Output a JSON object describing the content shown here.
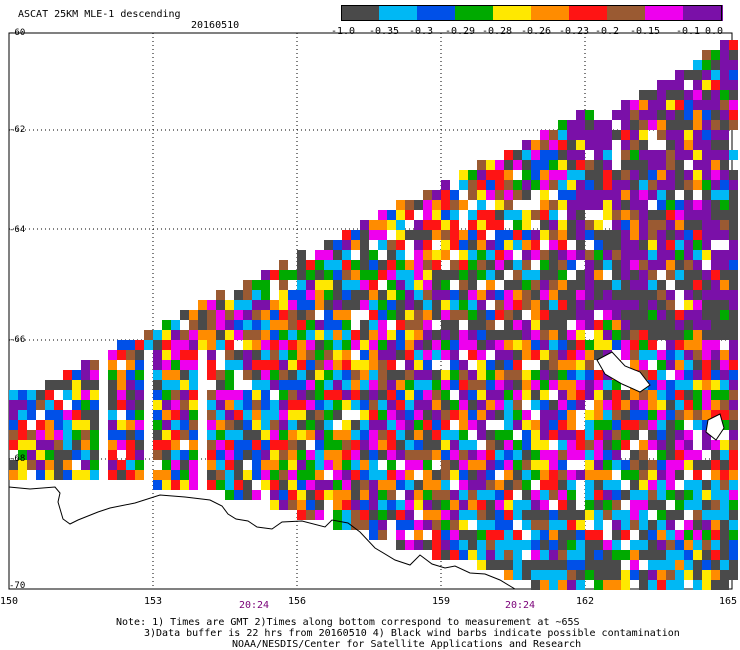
{
  "title": "ASCAT 25KM MLE-1 descending",
  "date": "20160510",
  "colorbar": {
    "colors": [
      "#4a4a4a",
      "#00b8f4",
      "#0050e8",
      "#00aa00",
      "#ffe800",
      "#ff8c00",
      "#ff1414",
      "#9a5a32",
      "#ee00ee",
      "#7a10a8"
    ],
    "tick_labels": [
      "-1.0",
      "-0.35",
      "-0.3",
      "-0.29",
      "-0.28",
      "-0.26",
      "-0.23",
      "-0.2",
      "-0.15",
      "-0.1",
      "0.0"
    ]
  },
  "lat_labels": [
    "-60",
    "-62",
    "-64",
    "-66",
    "-68",
    "-70"
  ],
  "lon_labels": [
    "150",
    "153",
    "156",
    "159",
    "162",
    "165"
  ],
  "time_labels": [
    "20:24",
    "20:24"
  ],
  "notes": [
    "Note: 1) Times are GMT 2)Times along bottom correspond to measurement at ~65S",
    "3)Data buffer is 22 hrs from 20160510 4) Black wind barbs indicate possible contamination",
    "NOAA/NESDIS/Center for Satellite Applications and Research"
  ]
}
